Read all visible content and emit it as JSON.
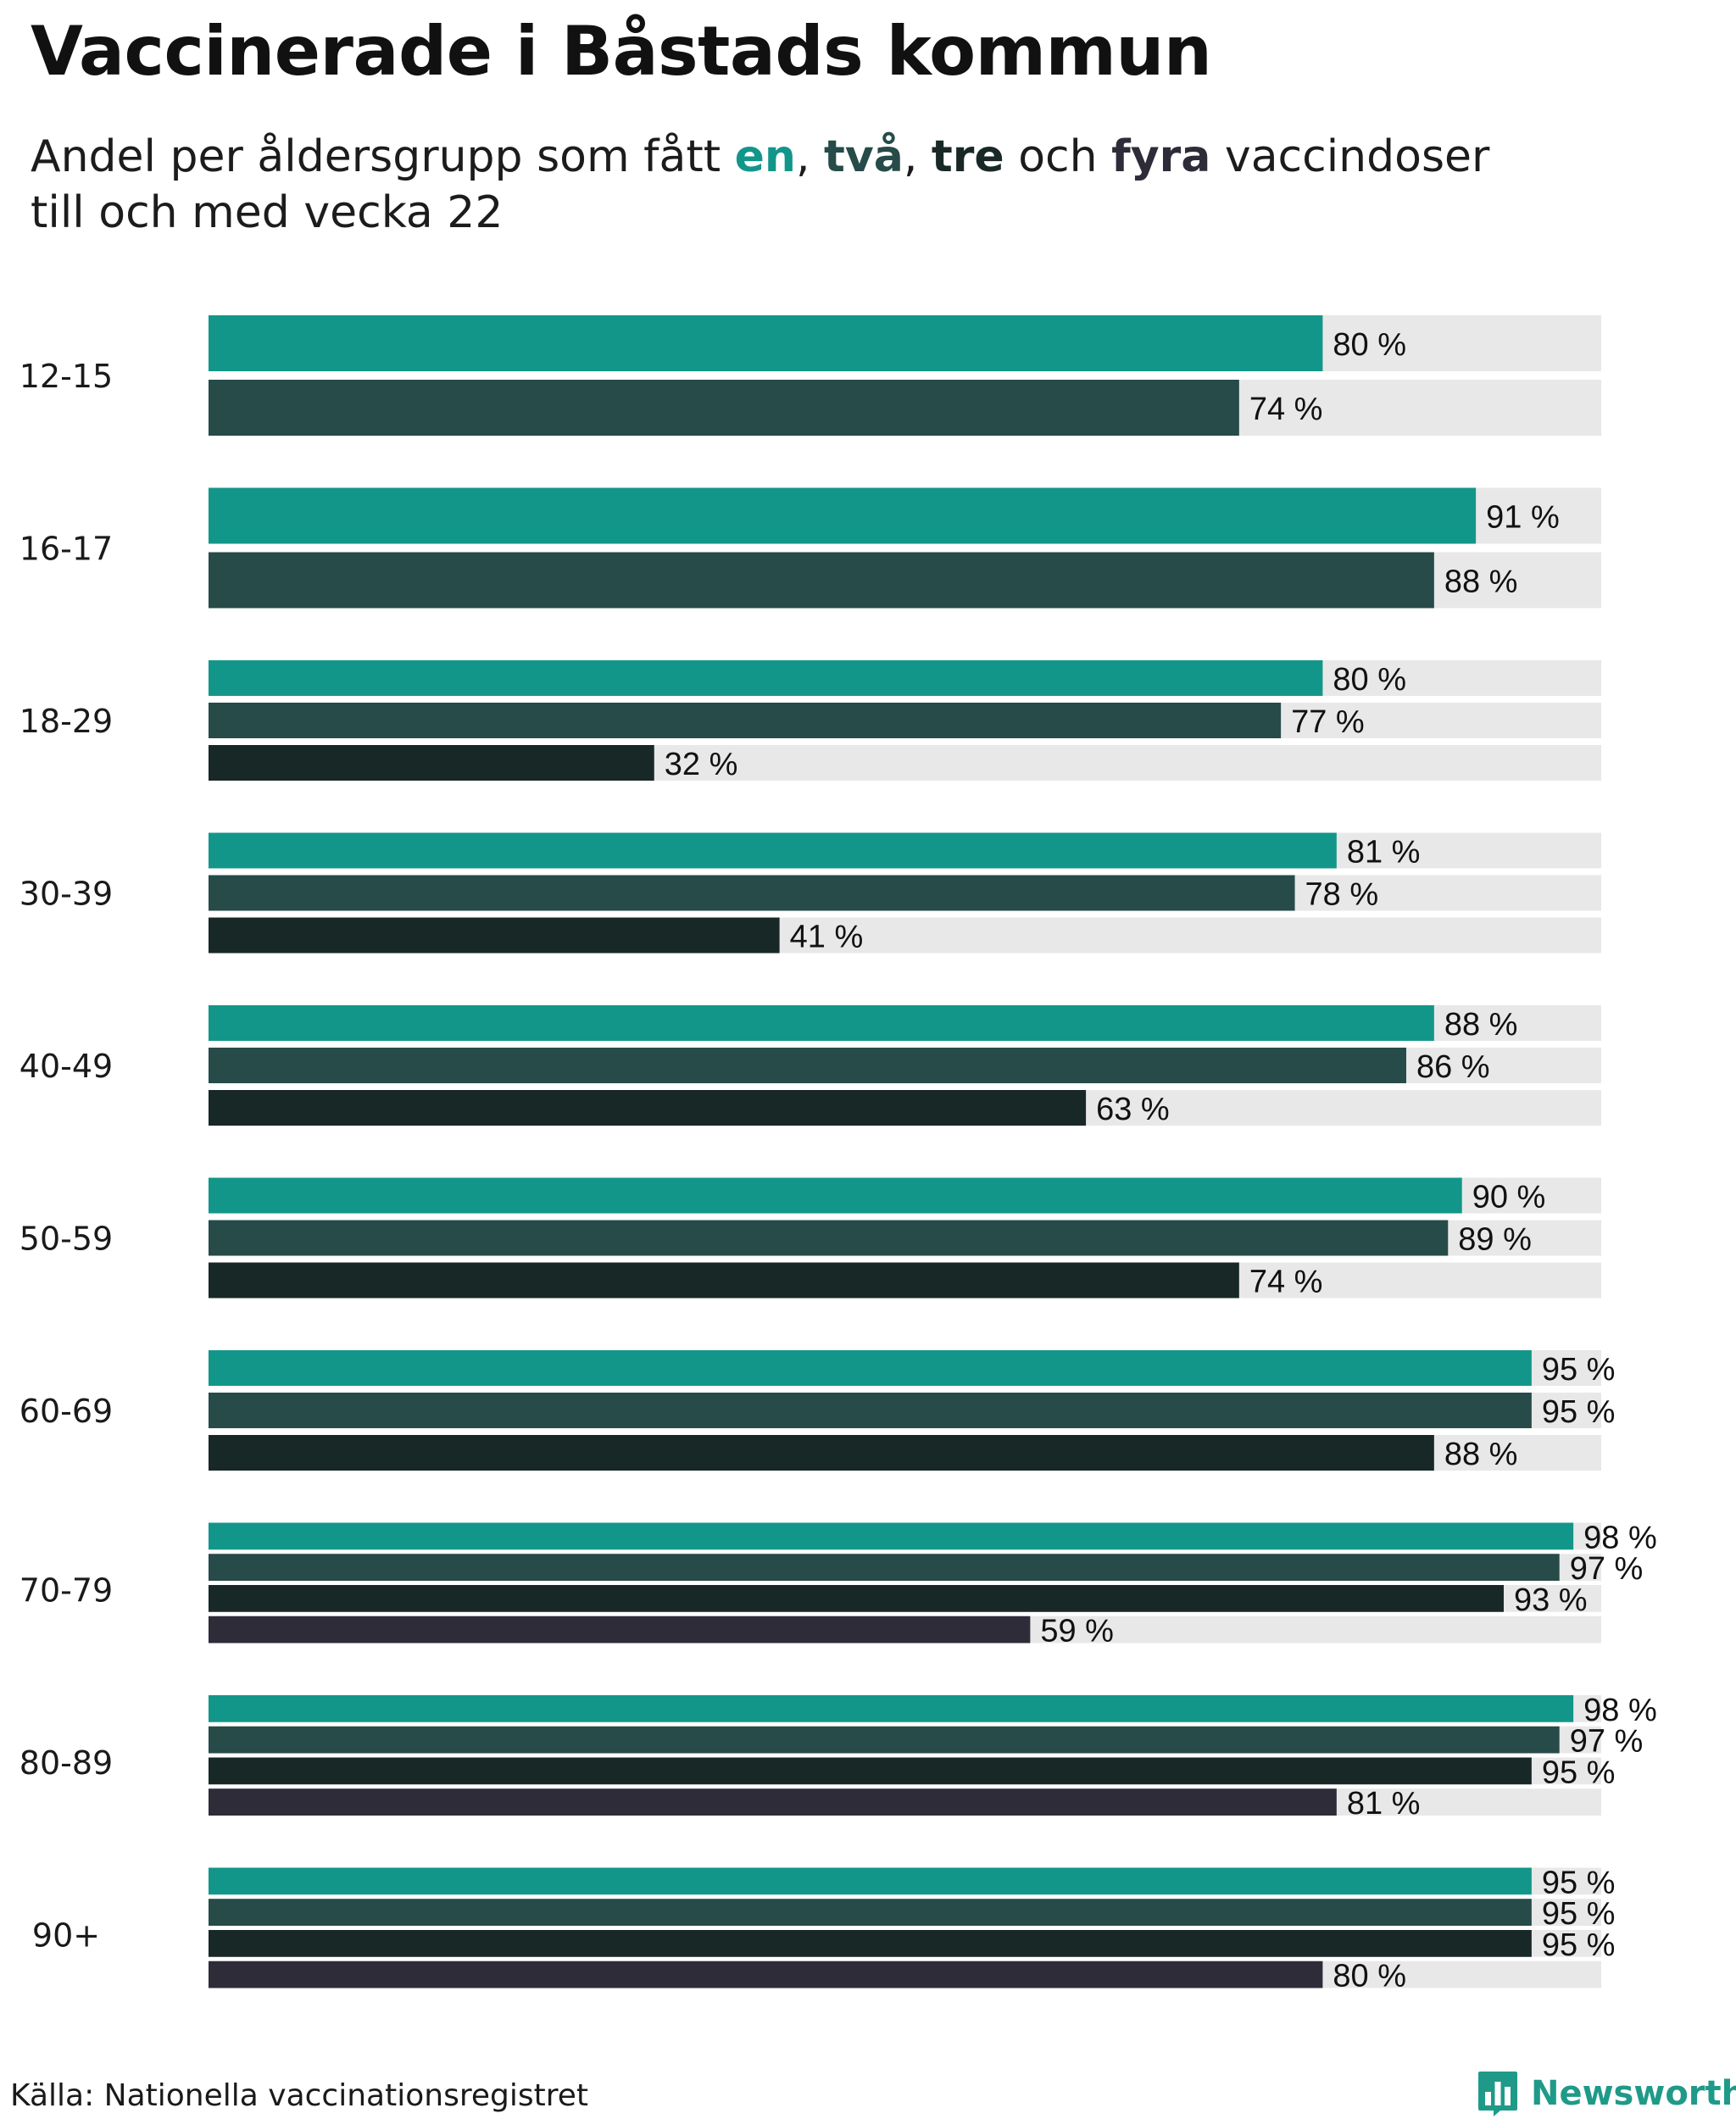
{
  "title": "Vaccinerade i Båstads kommun",
  "subtitle": {
    "pre": "Andel per åldersgrupp som fått ",
    "k1": "en",
    "sep1": ", ",
    "k2": "två",
    "sep2": ", ",
    "k3": "tre",
    "mid": " och ",
    "k4": "fyra",
    "post": " vaccindoser",
    "line2": "till och med vecka 22"
  },
  "source": "Källa: Nationella vaccinationsregistret",
  "brand": {
    "name": "Newsworthy",
    "icon": "bar-chart-logo-icon"
  },
  "colors": {
    "en": "#13968a",
    "tva": "#264b49",
    "tre": "#182827",
    "fyra": "#2e2c39",
    "track": "#e8e8e8",
    "brand": "#1f9a89"
  },
  "chart_data": {
    "type": "bar",
    "orientation": "horizontal",
    "value_unit": "%",
    "xlim": [
      0,
      100
    ],
    "grid": false,
    "legend": "none",
    "categories": [
      "12-15",
      "16-17",
      "18-29",
      "30-39",
      "40-49",
      "50-59",
      "60-69",
      "70-79",
      "80-89",
      "90+"
    ],
    "series": [
      {
        "name": "en",
        "values": [
          80,
          91,
          80,
          81,
          88,
          90,
          95,
          98,
          98,
          95
        ]
      },
      {
        "name": "två",
        "values": [
          74,
          88,
          77,
          78,
          86,
          89,
          95,
          97,
          97,
          95
        ]
      },
      {
        "name": "tre",
        "values": [
          null,
          null,
          32,
          41,
          63,
          74,
          88,
          93,
          95,
          95
        ]
      },
      {
        "name": "fyra",
        "values": [
          null,
          null,
          null,
          null,
          null,
          null,
          null,
          59,
          81,
          80
        ]
      }
    ]
  }
}
